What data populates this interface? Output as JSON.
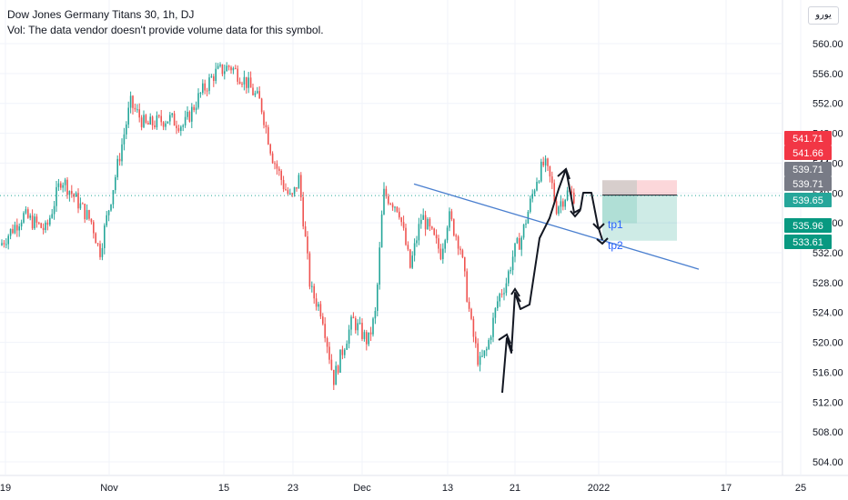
{
  "legend": {
    "title": "Dow Jones Germany Titans 30, 1h, DJ",
    "vol_text": "Vol: The data vendor doesn't provide volume data for this symbol."
  },
  "currency_label": "يورو",
  "colors": {
    "up": "#26a69a",
    "down": "#ef5350",
    "trendline": "#2962ff",
    "arrow": "#131722",
    "grid": "#f0f3fa",
    "last_price_line": "#26a69a",
    "tp_text": "#2962ff"
  },
  "chart_data": {
    "type": "candlestick",
    "title": "Dow Jones Germany Titans 30, 1h, DJ",
    "ylim": [
      502,
      564
    ],
    "y_ticks": [
      504,
      508,
      512,
      516,
      520,
      524,
      528,
      532,
      536,
      540,
      544,
      548,
      552,
      556,
      560
    ],
    "y_tick_labels": [
      "504.00",
      "508.00",
      "512.00",
      "516.00",
      "520.00",
      "524.00",
      "528.00",
      "532.00",
      "536.00",
      "540.00",
      "544.00",
      "548.00",
      "552.00",
      "556.00",
      "560.00"
    ],
    "x_ticks": [
      "19",
      "Nov",
      "15",
      "23",
      "Dec",
      "13",
      "21",
      "2022",
      "17",
      "25"
    ],
    "price_path": [
      [
        0,
        533
      ],
      [
        0.03,
        537
      ],
      [
        0.06,
        535
      ],
      [
        0.08,
        542
      ],
      [
        0.1,
        539
      ],
      [
        0.12,
        536
      ],
      [
        0.13,
        532
      ],
      [
        0.15,
        542
      ],
      [
        0.17,
        552
      ],
      [
        0.19,
        549
      ],
      [
        0.22,
        550
      ],
      [
        0.24,
        549
      ],
      [
        0.26,
        553
      ],
      [
        0.28,
        556
      ],
      [
        0.3,
        557
      ],
      [
        0.32,
        555
      ],
      [
        0.34,
        552
      ],
      [
        0.355,
        545
      ],
      [
        0.37,
        541
      ],
      [
        0.38,
        539
      ],
      [
        0.39,
        542
      ],
      [
        0.405,
        527
      ],
      [
        0.42,
        524
      ],
      [
        0.435,
        515
      ],
      [
        0.45,
        520
      ],
      [
        0.46,
        523
      ],
      [
        0.48,
        520
      ],
      [
        0.49,
        524
      ],
      [
        0.5,
        540
      ],
      [
        0.52,
        538
      ],
      [
        0.535,
        530
      ],
      [
        0.55,
        537
      ],
      [
        0.56,
        535
      ],
      [
        0.575,
        532
      ],
      [
        0.585,
        537
      ],
      [
        0.6,
        533
      ],
      [
        0.615,
        522
      ],
      [
        0.625,
        517
      ],
      [
        0.635,
        519
      ],
      [
        0.65,
        526
      ],
      [
        0.66,
        528
      ],
      [
        0.67,
        532
      ],
      [
        0.68,
        534
      ],
      [
        0.7,
        542
      ],
      [
        0.71,
        544
      ],
      [
        0.72,
        541
      ],
      [
        0.725,
        538
      ],
      [
        0.74,
        540
      ],
      [
        0.75,
        539.6
      ]
    ],
    "last_price": 539.65,
    "price_labels": [
      {
        "value": 541.71,
        "text": "541.71",
        "color": "#f23645"
      },
      {
        "value": 541.66,
        "text": "541.66",
        "color": "#f23645"
      },
      {
        "value": 539.71,
        "text": "539.71",
        "color": "#787b86"
      },
      {
        "value": 539.71,
        "text": "539.71",
        "color": "#787b86"
      },
      {
        "value": 539.65,
        "text": "539.65",
        "color": "#26a69a"
      },
      {
        "value": 535.96,
        "text": "535.96",
        "color": "#089981"
      },
      {
        "value": 533.61,
        "text": "533.61",
        "color": "#089981"
      }
    ],
    "trendline": {
      "from": {
        "x": "Dec 8",
        "y": 541.2
      },
      "to": {
        "x": "2022 end-Jan",
        "y": 529.8
      }
    },
    "position": {
      "entry": 539.71,
      "stop": 541.71,
      "targets": [
        535.96,
        533.61
      ]
    },
    "annotations": [
      "tp1",
      "tp2"
    ]
  }
}
